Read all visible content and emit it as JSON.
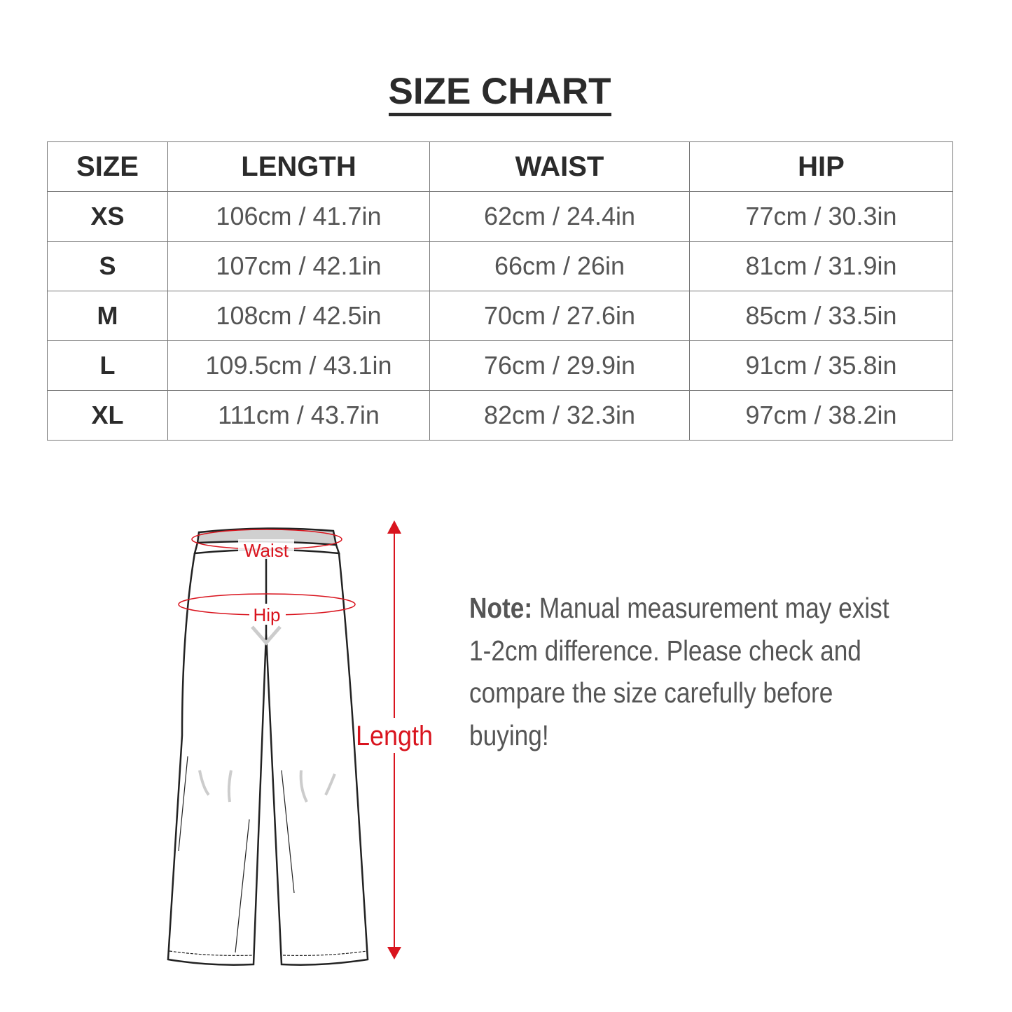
{
  "title": "SIZE CHART",
  "table": {
    "headers": [
      "SIZE",
      "LENGTH",
      "WAIST",
      "HIP"
    ],
    "rows": [
      {
        "size": "XS",
        "length": "106cm / 41.7in",
        "waist": "62cm / 24.4in",
        "hip": "77cm / 30.3in"
      },
      {
        "size": "S",
        "length": "107cm / 42.1in",
        "waist": "66cm / 26in",
        "hip": "81cm / 31.9in"
      },
      {
        "size": "M",
        "length": "108cm / 42.5in",
        "waist": "70cm / 27.6in",
        "hip": "85cm / 33.5in"
      },
      {
        "size": "L",
        "length": "109.5cm / 43.1in",
        "waist": "76cm / 29.9in",
        "hip": "91cm / 35.8in"
      },
      {
        "size": "XL",
        "length": "111cm / 43.7in",
        "waist": "82cm / 32.3in",
        "hip": "97cm / 38.2in"
      }
    ]
  },
  "diagram": {
    "waist_label": "Waist",
    "hip_label": "Hip",
    "length_label": "Length",
    "accent_color": "#d9141e"
  },
  "note": {
    "label": "Note:",
    "text": " Manual measurement may exist 1-2cm difference. Please check and compare the size carefully before buying!"
  }
}
